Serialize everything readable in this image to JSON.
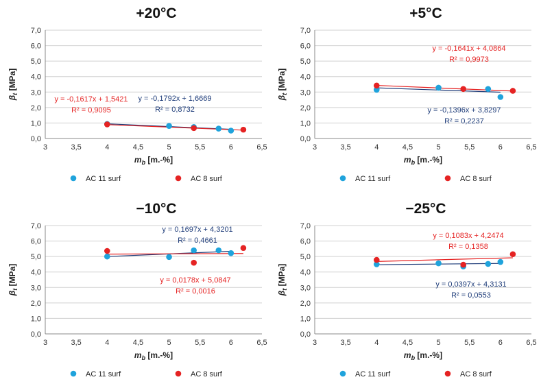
{
  "colors": {
    "ac11": "#1fa3dc",
    "ac8": "#e52323",
    "eq_ac11": "#1f3d7a",
    "eq_ac8": "#e52323",
    "grid": "#d0d0d0",
    "axis": "#888888"
  },
  "chart_data": [
    {
      "type": "scatter",
      "title": "+20°C",
      "ylabel_symbol": "β",
      "ylabel_sub": "t",
      "ylabel_unit": " [MPa]",
      "xlabel_symbol": "m",
      "xlabel_sub": "b",
      "xlabel_unit": " [m.-%]",
      "xlim": [
        3,
        6.5
      ],
      "ylim": [
        0,
        7
      ],
      "x_ticks": [
        "3",
        "3,5",
        "4",
        "4,5",
        "5",
        "5,5",
        "6",
        "6,5"
      ],
      "y_ticks": [
        "0,0",
        "1,0",
        "2,0",
        "3,0",
        "4,0",
        "5,0",
        "6,0",
        "7,0"
      ],
      "grid": true,
      "legend_position": "bottom",
      "series": [
        {
          "name": "AC 11 surf",
          "color": "#1fa3dc",
          "x": [
            4.0,
            5.0,
            5.4,
            5.8,
            6.0
          ],
          "y": [
            0.94,
            0.81,
            0.74,
            0.64,
            0.51
          ],
          "trend": {
            "slope": -0.1792,
            "intercept": 1.6669
          },
          "equation": "y = -0,1792x + 1,6669",
          "r2": "R² = 0,8732"
        },
        {
          "name": "AC 8 surf",
          "color": "#e52323",
          "x": [
            4.0,
            5.4,
            6.2
          ],
          "y": [
            0.91,
            0.67,
            0.57
          ],
          "trend": {
            "slope": -0.1617,
            "intercept": 1.5421
          },
          "equation": "y = -0,1617x + 1,5421",
          "r2": "R² = 0,9095"
        }
      ]
    },
    {
      "type": "scatter",
      "title": "+5°C",
      "ylabel_symbol": "β",
      "ylabel_sub": "t",
      "ylabel_unit": " [MPa]",
      "xlabel_symbol": "m",
      "xlabel_sub": "b",
      "xlabel_unit": " [m.-%]",
      "xlim": [
        3,
        6.5
      ],
      "ylim": [
        0,
        7
      ],
      "x_ticks": [
        "3",
        "3,5",
        "4",
        "4,5",
        "5",
        "5,5",
        "6",
        "6,5"
      ],
      "y_ticks": [
        "0,0",
        "1,0",
        "2,0",
        "3,0",
        "4,0",
        "5,0",
        "6,0",
        "7,0"
      ],
      "grid": true,
      "legend_position": "bottom",
      "series": [
        {
          "name": "AC 11 surf",
          "color": "#1fa3dc",
          "x": [
            4.0,
            5.0,
            5.8,
            6.0
          ],
          "y": [
            3.15,
            3.28,
            3.2,
            2.68
          ],
          "trend": {
            "slope": -0.1396,
            "intercept": 3.8297
          },
          "equation": "y = -0,1396x + 3,8297",
          "r2": "R² = 0,2237"
        },
        {
          "name": "AC 8 surf",
          "color": "#e52323",
          "x": [
            4.0,
            5.4,
            6.2
          ],
          "y": [
            3.42,
            3.2,
            3.08
          ],
          "trend": {
            "slope": -0.1641,
            "intercept": 4.0864
          },
          "equation": "y = -0,1641x + 4,0864",
          "r2": "R² = 0,9973"
        }
      ]
    },
    {
      "type": "scatter",
      "title": "−10°C",
      "ylabel_symbol": "β",
      "ylabel_sub": "t",
      "ylabel_unit": " [MPa]",
      "xlabel_symbol": "m",
      "xlabel_sub": "b",
      "xlabel_unit": " [m.-%]",
      "xlim": [
        3,
        6.5
      ],
      "ylim": [
        0,
        7
      ],
      "x_ticks": [
        "3",
        "3,5",
        "4",
        "4,5",
        "5",
        "5,5",
        "6",
        "6,5"
      ],
      "y_ticks": [
        "0,0",
        "1,0",
        "2,0",
        "3,0",
        "4,0",
        "5,0",
        "6,0",
        "7,0"
      ],
      "grid": true,
      "legend_position": "bottom",
      "series": [
        {
          "name": "AC 11 surf",
          "color": "#1fa3dc",
          "x": [
            4.0,
            5.0,
            5.4,
            5.8,
            6.0
          ],
          "y": [
            5.0,
            4.97,
            5.4,
            5.4,
            5.22
          ],
          "trend": {
            "slope": 0.1697,
            "intercept": 4.3201
          },
          "equation": "y = 0,1697x + 4,3201",
          "r2": "R² = 0,4661"
        },
        {
          "name": "AC 8 surf",
          "color": "#e52323",
          "x": [
            4.0,
            5.4,
            6.2
          ],
          "y": [
            5.36,
            4.6,
            5.55
          ],
          "trend": {
            "slope": 0.0178,
            "intercept": 5.0847
          },
          "equation": "y = 0,0178x + 5,0847",
          "r2": "R² = 0,0016"
        }
      ]
    },
    {
      "type": "scatter",
      "title": "−25°C",
      "ylabel_symbol": "β",
      "ylabel_sub": "t",
      "ylabel_unit": " [MPa]",
      "xlabel_symbol": "m",
      "xlabel_sub": "b",
      "xlabel_unit": " [m.-%]",
      "xlim": [
        3,
        6.5
      ],
      "ylim": [
        0,
        7
      ],
      "x_ticks": [
        "3",
        "3,5",
        "4",
        "4,5",
        "5",
        "5,5",
        "6",
        "6,5"
      ],
      "y_ticks": [
        "0,0",
        "1,0",
        "2,0",
        "3,0",
        "4,0",
        "5,0",
        "6,0",
        "7,0"
      ],
      "grid": true,
      "legend_position": "bottom",
      "series": [
        {
          "name": "AC 11 surf",
          "color": "#1fa3dc",
          "x": [
            4.0,
            5.0,
            5.4,
            5.8,
            6.0
          ],
          "y": [
            4.5,
            4.56,
            4.36,
            4.52,
            4.65
          ],
          "trend": {
            "slope": 0.0397,
            "intercept": 4.3131
          },
          "equation": "y = 0,0397x + 4,3131",
          "r2": "R² = 0,0553"
        },
        {
          "name": "AC 8 surf",
          "color": "#e52323",
          "x": [
            4.0,
            5.4,
            6.2
          ],
          "y": [
            4.78,
            4.47,
            5.15
          ],
          "trend": {
            "slope": 0.1083,
            "intercept": 4.2474
          },
          "equation": "y = 0,1083x + 4,2474",
          "r2": "R² = 0,1358"
        }
      ]
    }
  ]
}
